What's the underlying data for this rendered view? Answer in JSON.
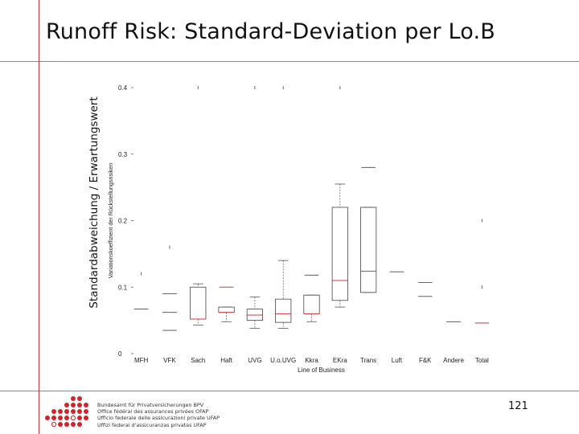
{
  "slide": {
    "title": "Runoff Risk: Standard-Deviation per Lo.B",
    "outer_ylabel": "Standardabweichung / Erwartungswert",
    "page_number": "121"
  },
  "footer": {
    "lines": [
      "Bundesamt für Privatversicherungen BPV",
      "Office fédéral des assurances privées OFAP",
      "Ufficio federale delle assicurazioni private UFAP",
      "Uffizi federal d'assicuranzas privatas UFAP"
    ]
  },
  "chart_data": {
    "type": "box",
    "title": "",
    "xlabel": "Line of Business",
    "ylabel": "Variationskoeffizient der Rückstellungsrisiken",
    "ylim": [
      0,
      0.4
    ],
    "yticks": [
      0,
      0.1,
      0.2,
      0.3,
      0.4
    ],
    "ytick_labels": [
      "0",
      "0.1",
      "0.2",
      "0.3",
      "0.4"
    ],
    "colors": {
      "median": "#d23a3a",
      "box": "#444444",
      "whisker": "#555555"
    },
    "categories": [
      "MFH",
      "VFK",
      "Sach",
      "Haft",
      "UVG",
      "U.o.UVG",
      "Kkra",
      "EKra",
      "Trans",
      "Luft",
      "F&K",
      "Andere",
      "Total"
    ],
    "boxes": [
      {
        "category": "MFH",
        "q1": null,
        "median": null,
        "q3": null,
        "whisker_low": null,
        "whisker_high": null,
        "level_lines": [
          0.067
        ],
        "median_lines": [],
        "outliers": [
          0.12
        ]
      },
      {
        "category": "VFK",
        "q1": null,
        "median": null,
        "q3": null,
        "whisker_low": null,
        "whisker_high": null,
        "level_lines": [
          0.062,
          0.035
        ],
        "median_lines": [
          0.09
        ],
        "outliers": [
          0.16
        ]
      },
      {
        "category": "Sach",
        "q1": 0.052,
        "median": 0.052,
        "q3": 0.1,
        "whisker_low": 0.043,
        "whisker_high": 0.105,
        "level_lines": [],
        "median_lines": [],
        "outliers": [
          0.4
        ]
      },
      {
        "category": "Haft",
        "q1": 0.062,
        "median": 0.062,
        "q3": 0.07,
        "whisker_low": 0.048,
        "whisker_high": 0.07,
        "level_lines": [],
        "median_lines": [
          0.1
        ],
        "outliers": []
      },
      {
        "category": "UVG",
        "q1": 0.05,
        "median": 0.058,
        "q3": 0.067,
        "whisker_low": 0.038,
        "whisker_high": 0.085,
        "level_lines": [],
        "median_lines": [],
        "outliers": [
          0.4
        ]
      },
      {
        "category": "U.o.UVG",
        "q1": 0.047,
        "median": 0.06,
        "q3": 0.082,
        "whisker_low": 0.038,
        "whisker_high": 0.14,
        "level_lines": [],
        "median_lines": [],
        "outliers": [
          0.4
        ]
      },
      {
        "category": "Kkra",
        "q1": 0.06,
        "median": 0.06,
        "q3": 0.088,
        "whisker_low": 0.048,
        "whisker_high": 0.088,
        "level_lines": [
          0.118
        ],
        "median_lines": [],
        "outliers": []
      },
      {
        "category": "EKra",
        "q1": 0.08,
        "median": 0.11,
        "q3": 0.22,
        "whisker_low": 0.07,
        "whisker_high": 0.255,
        "level_lines": [],
        "median_lines": [],
        "outliers": [
          0.4
        ]
      },
      {
        "category": "Trans",
        "q1": 0.092,
        "median": 0.124,
        "q3": 0.22,
        "whisker_low": 0.092,
        "whisker_high": 0.22,
        "level_lines": [
          0.28
        ],
        "median_lines": [],
        "outliers": []
      },
      {
        "category": "Luft",
        "q1": null,
        "median": null,
        "q3": null,
        "whisker_low": null,
        "whisker_high": null,
        "level_lines": [
          0.123
        ],
        "median_lines": [],
        "outliers": []
      },
      {
        "category": "F&K",
        "q1": null,
        "median": null,
        "q3": null,
        "whisker_low": null,
        "whisker_high": null,
        "level_lines": [
          0.086
        ],
        "median_lines": [
          0.107
        ],
        "outliers": []
      },
      {
        "category": "Andere",
        "q1": null,
        "median": null,
        "q3": null,
        "whisker_low": null,
        "whisker_high": null,
        "level_lines": [
          0.048
        ],
        "median_lines": [],
        "outliers": []
      },
      {
        "category": "Total",
        "q1": null,
        "median": null,
        "q3": null,
        "whisker_low": null,
        "whisker_high": null,
        "level_lines": [],
        "median_lines": [
          0.046
        ],
        "outliers": [
          0.2,
          0.1
        ]
      }
    ]
  }
}
